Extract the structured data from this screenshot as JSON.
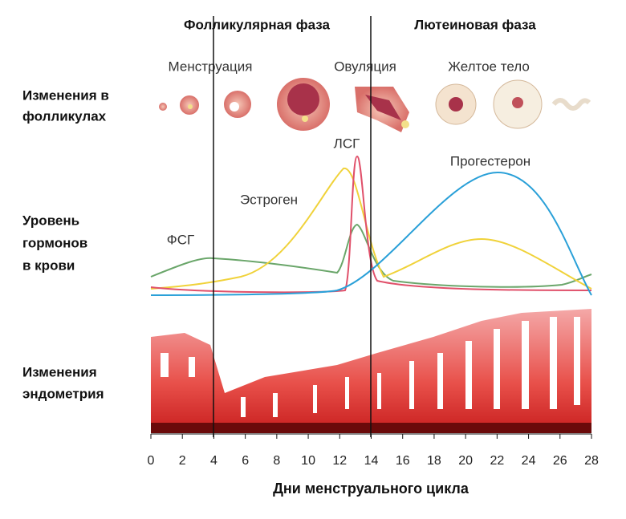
{
  "phases": [
    "Фолликулярная фаза",
    "Лютеиновая фаза"
  ],
  "rows": [
    [
      "Изменения в",
      "фолликулах"
    ],
    [
      "Уровень",
      "гормонов",
      "в крови"
    ],
    [
      "Изменения",
      "эндометрия"
    ]
  ],
  "stages": [
    "Менструация",
    "Овуляция",
    "Желтое тело"
  ],
  "hormones": [
    "ЛСГ",
    "Прогестерон",
    "Эстроген",
    "ФСГ"
  ],
  "axis": {
    "ticks": [
      0,
      2,
      4,
      6,
      8,
      10,
      12,
      14,
      16,
      18,
      20,
      22,
      24,
      26,
      28
    ],
    "title": "Дни менструального цикла"
  }
}
